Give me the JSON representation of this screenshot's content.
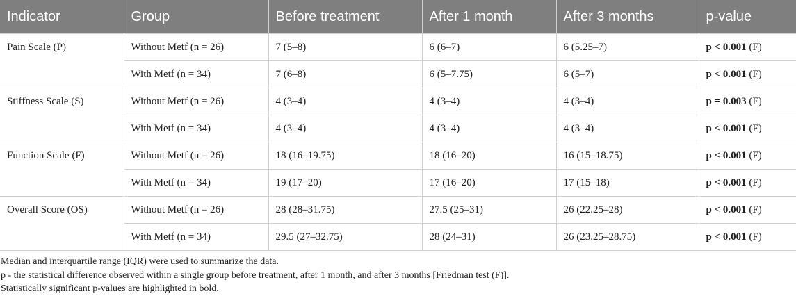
{
  "table": {
    "header": [
      "Indicator",
      "Group",
      "Before treatment",
      "After 1 month",
      "After 3 months",
      "p-value"
    ],
    "rows": [
      {
        "indicator": "Pain Scale (P)",
        "groups": [
          {
            "group": "Without Metf (n = 26)",
            "before": "7 (5–8)",
            "month1": "6 (6–7)",
            "month3": "6 (5.25–7)",
            "p": "p < 0.001",
            "test": "(F)"
          },
          {
            "group": "With Metf (n = 34)",
            "before": "7 (6–8)",
            "month1": "6 (5–7.75)",
            "month3": "6 (5–7)",
            "p": "p < 0.001",
            "test": "(F)"
          }
        ]
      },
      {
        "indicator": "Stiffness Scale (S)",
        "groups": [
          {
            "group": "Without Metf (n = 26)",
            "before": "4 (3–4)",
            "month1": "4 (3–4)",
            "month3": "4 (3–4)",
            "p": "p = 0.003",
            "test": "(F)"
          },
          {
            "group": "With Metf (n = 34)",
            "before": "4 (3–4)",
            "month1": "4 (3–4)",
            "month3": "4 (3–4)",
            "p": "p < 0.001",
            "test": "(F)"
          }
        ]
      },
      {
        "indicator": "Function Scale (F)",
        "groups": [
          {
            "group": "Without Metf (n = 26)",
            "before": "18 (16–19.75)",
            "month1": "18 (16–20)",
            "month3": "16 (15–18.75)",
            "p": "p < 0.001",
            "test": "(F)"
          },
          {
            "group": "With Metf (n = 34)",
            "before": "19 (17–20)",
            "month1": "17 (16–20)",
            "month3": "17 (15–18)",
            "p": "p < 0.001",
            "test": "(F)"
          }
        ]
      },
      {
        "indicator": "Overall Score (OS)",
        "groups": [
          {
            "group": "Without Metf (n = 26)",
            "before": "28 (28–31.75)",
            "month1": "27.5 (25–31)",
            "month3": "26 (22.25–28)",
            "p": "p < 0.001",
            "test": "(F)"
          },
          {
            "group": "With Metf (n = 34)",
            "before": "29.5 (27–32.75)",
            "month1": "28 (24–31)",
            "month3": "26 (23.25–28.75)",
            "p": "p < 0.001",
            "test": "(F)"
          }
        ]
      }
    ]
  },
  "footnotes": [
    "Median and interquartile range (IQR) were used to summarize the data.",
    "p - the statistical difference observed within a single group before treatment, after 1 month, and after 3 months [Friedman test (F)].",
    "Statistically significant p-values are highlighted in bold."
  ]
}
